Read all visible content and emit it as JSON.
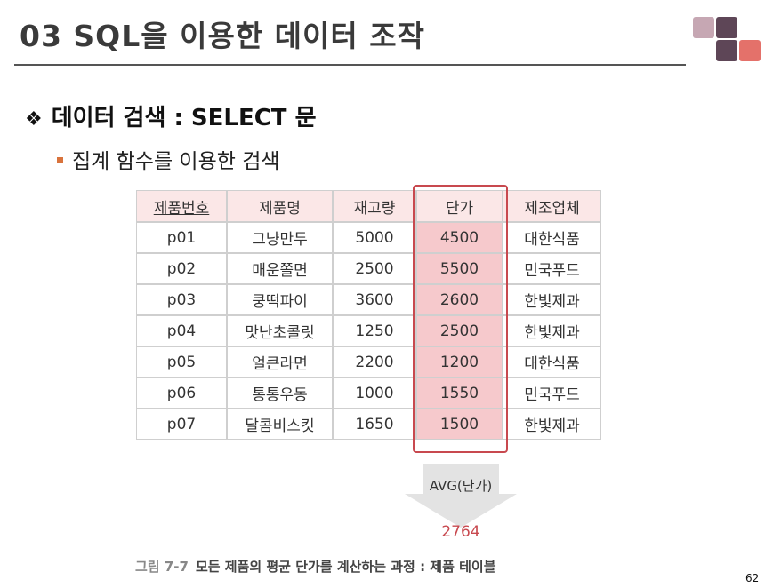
{
  "slide": {
    "title": "03 SQL을 이용한 데이터 조작",
    "heading": "데이터 검색 : SELECT 문",
    "subheading": "집계 함수를 이용한 검색",
    "page_number": "62"
  },
  "table": {
    "headers": [
      "제품번호",
      "제품명",
      "재고량",
      "단가",
      "제조업체"
    ],
    "rows": [
      [
        "p01",
        "그냥만두",
        "5000",
        "4500",
        "대한식품"
      ],
      [
        "p02",
        "매운쫄면",
        "2500",
        "5500",
        "민국푸드"
      ],
      [
        "p03",
        "쿵떡파이",
        "3600",
        "2600",
        "한빛제과"
      ],
      [
        "p04",
        "맛난초콜릿",
        "1250",
        "2500",
        "한빛제과"
      ],
      [
        "p05",
        "얼큰라면",
        "2200",
        "1200",
        "대한식품"
      ],
      [
        "p06",
        "통통우동",
        "1000",
        "1550",
        "민국푸드"
      ],
      [
        "p07",
        "달콤비스킷",
        "1650",
        "1500",
        "한빛제과"
      ]
    ]
  },
  "aggregate": {
    "label": "AVG(단가)",
    "value": "2764"
  },
  "caption": {
    "figure": "그림 7-7",
    "text": "모든 제품의 평균 단가를 계산하는 과정 : 제품 테이블"
  },
  "colors": {
    "accent_red": "#c8494f",
    "price_cell": "#f6c9cc",
    "header_cell": "#fbe7e7",
    "bullet_orange": "#d9733c",
    "deco_light": "#c6a7b3",
    "deco_dark": "#5e4657",
    "deco_coral": "#e4716a"
  },
  "icons": {
    "heading_bullet": "diamond-cluster-icon",
    "sub_bullet": "square-bullet-icon",
    "decoration": "corner-squares-icon"
  }
}
